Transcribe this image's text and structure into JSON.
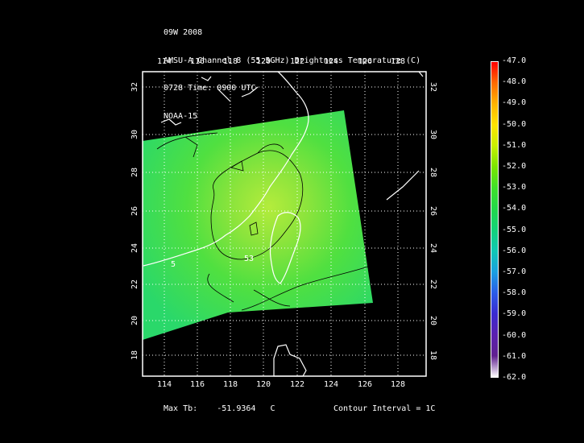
{
  "header": {
    "line1": "09W 2008",
    "line2": "AMSU-A Channel 8 (55.5GHz) Brightness Temperature (C)",
    "line3": "0728 Time: 0900 UTC",
    "line4": "NOAA-15"
  },
  "axes": {
    "lon_ticks": [
      "114",
      "116",
      "118",
      "120",
      "122",
      "124",
      "126",
      "128"
    ],
    "lat_ticks": [
      "18",
      "20",
      "22",
      "24",
      "26",
      "28",
      "30",
      "32"
    ]
  },
  "colorbar": {
    "labels": [
      "-47.0",
      "-48.0",
      "-49.0",
      "-50.0",
      "-51.0",
      "-52.0",
      "-53.0",
      "-54.0",
      "-55.0",
      "-56.0",
      "-57.0",
      "-58.0",
      "-59.0",
      "-60.0",
      "-61.0",
      "-62.0"
    ],
    "colors": [
      "#ff0000",
      "#ff6a00",
      "#ffb400",
      "#ffe400",
      "#c8f000",
      "#7ae600",
      "#3fe02a",
      "#22d84a",
      "#12d27a",
      "#10c8b4",
      "#1aa0e0",
      "#2a5ce8",
      "#3a2ad0",
      "#5a20b0",
      "#602090",
      "#ffffff"
    ]
  },
  "contours": {
    "label_a": "53",
    "label_b": "5"
  },
  "footer": {
    "max_label": "Max Tb:",
    "max_value": "-51.9364",
    "max_unit": "C",
    "contour_interval": "Contour Interval = 1C"
  }
}
